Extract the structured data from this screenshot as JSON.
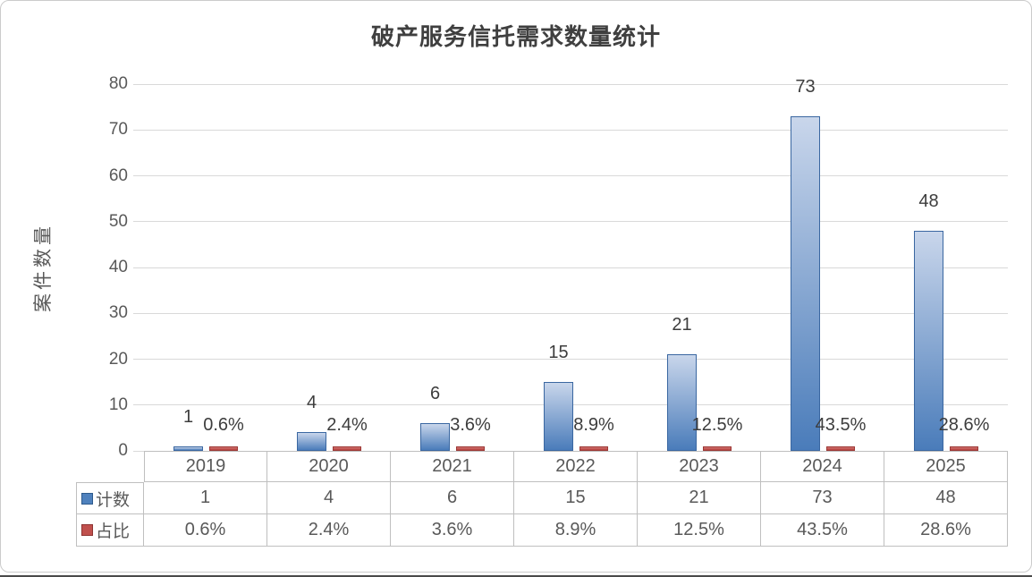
{
  "chart_data": {
    "type": "bar",
    "title": "破产服务信托需求数量统计",
    "ylabel": "案件数量",
    "categories": [
      "2019",
      "2020",
      "2021",
      "2022",
      "2023",
      "2024",
      "2025"
    ],
    "series": [
      {
        "name": "计数",
        "values": [
          1,
          4,
          6,
          15,
          21,
          73,
          48
        ],
        "labels": [
          "1",
          "4",
          "6",
          "15",
          "21",
          "73",
          "48"
        ],
        "color": "#4F81BD"
      },
      {
        "name": "占比",
        "values_percent": [
          0.6,
          2.4,
          3.6,
          8.9,
          12.5,
          43.5,
          28.6
        ],
        "labels": [
          "0.6%",
          "2.4%",
          "3.6%",
          "8.9%",
          "12.5%",
          "43.5%",
          "28.6%"
        ],
        "color": "#C0504D"
      }
    ],
    "ylim": [
      0,
      80
    ],
    "ytick_step": 10,
    "yticks": [
      "0",
      "10",
      "20",
      "30",
      "40",
      "50",
      "60",
      "70",
      "80"
    ],
    "grid": true,
    "legend_position": "data-table-left"
  },
  "colors": {
    "bar_fill_top": "#C9D6EB",
    "bar_fill_bottom": "#4A7CBA",
    "bar_border": "#3A67A1",
    "pct_fill_top": "#D27370",
    "pct_fill_bottom": "#B5423F",
    "pct_border": "#9C3936",
    "legend_count": "#4F81BD",
    "legend_count_border": "#2E5A8C",
    "legend_pct": "#C0504D",
    "legend_pct_border": "#8E3432",
    "grid": "#D9D9D9",
    "axis_text": "#595959",
    "label_text": "#3D3D3D",
    "table_border": "#BFBFBF",
    "title_text": "#3F3F3F"
  }
}
